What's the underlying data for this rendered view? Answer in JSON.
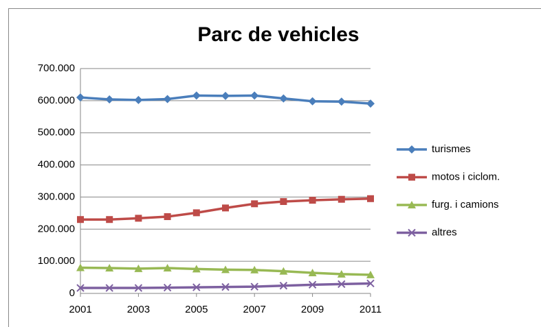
{
  "chart_data": {
    "type": "line",
    "title": "Parc de vehicles",
    "x": [
      2001,
      2002,
      2003,
      2004,
      2005,
      2006,
      2007,
      2008,
      2009,
      2010,
      2011
    ],
    "xlim": [
      2001,
      2011
    ],
    "xticks": [
      2001,
      2003,
      2005,
      2007,
      2009,
      2011
    ],
    "ylim": [
      0,
      700000
    ],
    "yticks": [
      0,
      {
        "value": 100000,
        "label": "100.000"
      },
      {
        "value": 200000,
        "label": "200.000"
      },
      {
        "value": 300000,
        "label": "300.000"
      },
      {
        "value": 400000,
        "label": "400.000"
      },
      {
        "value": 500000,
        "label": "500.000"
      },
      {
        "value": 600000,
        "label": "600.000"
      },
      {
        "value": 700000,
        "label": "700.000"
      }
    ],
    "grid": true,
    "legend": "right",
    "series": [
      {
        "name": "turismes",
        "color": "#4a7ebb",
        "marker": "diamond",
        "values": [
          610000,
          604000,
          602000,
          605000,
          616000,
          615000,
          616000,
          607000,
          598000,
          597000,
          591000
        ]
      },
      {
        "name": "motos i ciclom.",
        "color": "#be4b48",
        "marker": "square",
        "values": [
          230000,
          230000,
          234000,
          239000,
          251000,
          266000,
          279000,
          286000,
          290000,
          293000,
          295000
        ]
      },
      {
        "name": "furg. i camions",
        "color": "#98b954",
        "marker": "triangle",
        "values": [
          80000,
          79000,
          77000,
          79000,
          76000,
          74000,
          73000,
          69000,
          64000,
          60000,
          58000
        ]
      },
      {
        "name": "altres",
        "color": "#7d60a0",
        "marker": "x",
        "values": [
          17000,
          17000,
          17000,
          18000,
          19000,
          20000,
          21000,
          24000,
          27000,
          29000,
          31000
        ]
      }
    ]
  }
}
